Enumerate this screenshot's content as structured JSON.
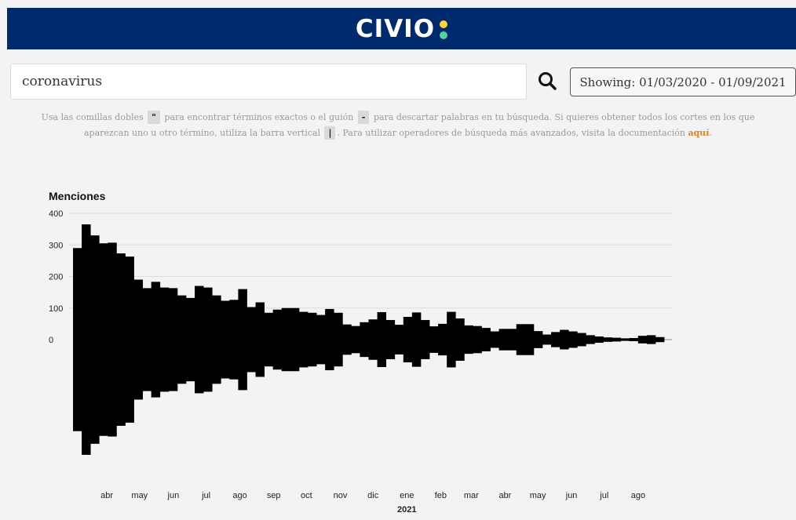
{
  "header": {
    "logo_text": "CIVIO",
    "logo_dot_colors": [
      "#ffd23f",
      "#52d39b"
    ],
    "background": "#002a6b"
  },
  "search": {
    "value": "coronavirus",
    "icon": "search-icon"
  },
  "date_range": {
    "label": "Showing: 01/03/2020 - 01/09/2021"
  },
  "help": {
    "t1": "Usa las comillas dobles",
    "code1": "\"",
    "t2": "para encontrar términos exactos o el guión",
    "code2": "-",
    "t3": "para descartar palabras en tu búsqueda. Si quieres obtener todos los cortes en los que aparezcan uno u otro término, utiliza la barra vertical",
    "code3": "|",
    "t4": ". Para utilizar operadores de búsqueda más avanzados, visita la documentación",
    "link": "aquí",
    "t5": "."
  },
  "chart_data": {
    "type": "bar",
    "style": "mirrored-streamgraph",
    "ylabel": "Menciones",
    "ylim": [
      0,
      400
    ],
    "yticks": [
      0,
      100,
      200,
      300,
      400
    ],
    "grid": true,
    "bar_color": "#000000",
    "x_range": [
      "2020-03-01",
      "2021-09-01"
    ],
    "month_labels": [
      "abr",
      "may",
      "jun",
      "jul",
      "ago",
      "sep",
      "oct",
      "nov",
      "dic",
      "ene",
      "feb",
      "mar",
      "abr",
      "may",
      "jun",
      "jul",
      "ago"
    ],
    "year_label": "2021",
    "values": [
      290,
      365,
      330,
      305,
      307,
      273,
      263,
      190,
      163,
      183,
      165,
      163,
      140,
      132,
      170,
      165,
      140,
      123,
      126,
      160,
      103,
      118,
      85,
      95,
      100,
      100,
      88,
      85,
      78,
      97,
      85,
      48,
      43,
      55,
      64,
      87,
      62,
      47,
      72,
      86,
      62,
      42,
      50,
      88,
      67,
      45,
      43,
      37,
      26,
      34,
      34,
      49,
      49,
      27,
      16,
      24,
      31,
      26,
      21,
      14,
      10,
      7,
      6,
      4,
      5,
      12,
      14,
      8
    ]
  }
}
